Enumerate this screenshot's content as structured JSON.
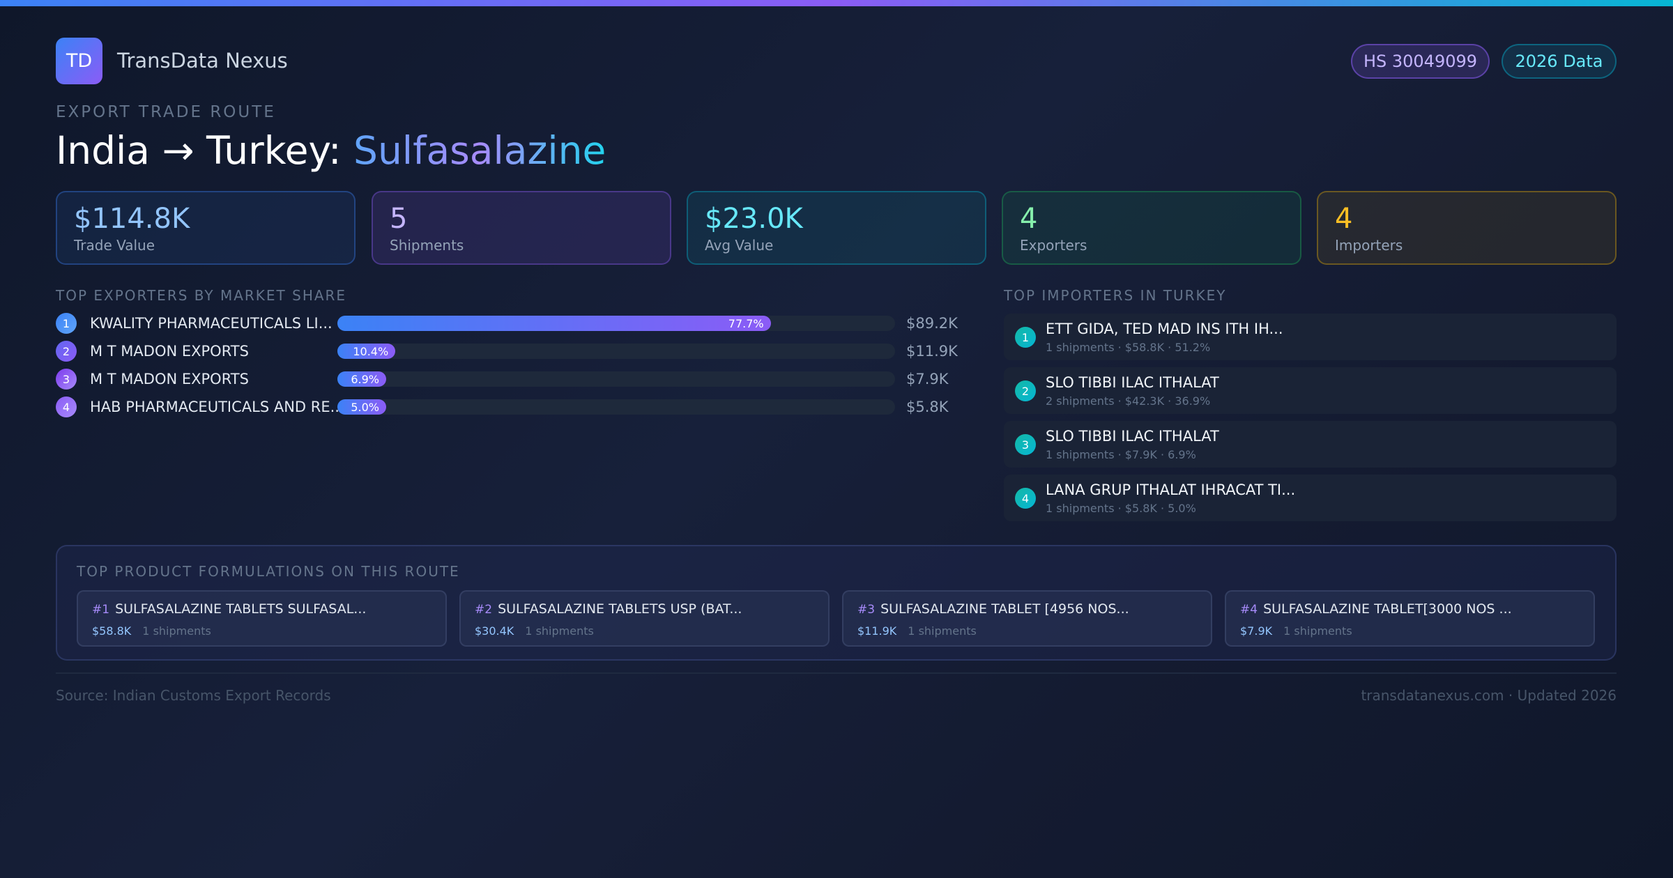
{
  "header": {
    "logo_text": "TD",
    "brand": "TransData Nexus",
    "badges": [
      "HS 30049099",
      "2026 Data"
    ]
  },
  "route": {
    "eyebrow": "EXPORT TRADE ROUTE",
    "title_prefix": "India → Turkey: ",
    "title_product": "Sulfasalazine"
  },
  "stats": [
    {
      "value": "$114.8K",
      "label": "Trade Value",
      "color": "#93c5fd"
    },
    {
      "value": "5",
      "label": "Shipments",
      "color": "#c4b5fd"
    },
    {
      "value": "$23.0K",
      "label": "Avg Value",
      "color": "#67e8f9"
    },
    {
      "value": "4",
      "label": "Exporters",
      "color": "#86efac"
    },
    {
      "value": "4",
      "label": "Importers",
      "color": "#fbbf24"
    }
  ],
  "exporters": {
    "label": "TOP EXPORTERS BY MARKET SHARE",
    "items": [
      {
        "rank": "1",
        "name": "KWALITY PHARMACEUTICALS LI...",
        "share": 77.7,
        "share_label": "77.7%",
        "value": "$89.2K"
      },
      {
        "rank": "2",
        "name": "M T MADON EXPORTS",
        "share": 10.4,
        "share_label": "10.4%",
        "value": "$11.9K"
      },
      {
        "rank": "3",
        "name": "M T MADON EXPORTS",
        "share": 6.9,
        "share_label": "6.9%",
        "value": "$7.9K"
      },
      {
        "rank": "4",
        "name": "HAB PHARMACEUTICALS AND RE...",
        "share": 5.0,
        "share_label": "5.0%",
        "value": "$5.8K"
      }
    ]
  },
  "importers": {
    "label": "TOP IMPORTERS IN TURKEY",
    "items": [
      {
        "rank": "1",
        "name": "ETT GIDA, TED MAD INS ITH IH...",
        "detail": "1 shipments · $58.8K · 51.2%"
      },
      {
        "rank": "2",
        "name": "SLO TIBBI ILAC ITHALAT",
        "detail": "2 shipments · $42.3K · 36.9%"
      },
      {
        "rank": "3",
        "name": "SLO TIBBI ILAC ITHALAT",
        "detail": "1 shipments · $7.9K · 6.9%"
      },
      {
        "rank": "4",
        "name": "LANA GRUP ITHALAT IHRACAT TI...",
        "detail": "1 shipments · $5.8K · 5.0%"
      }
    ]
  },
  "formulations": {
    "label": "TOP PRODUCT FORMULATIONS ON THIS ROUTE",
    "items": [
      {
        "rank": "#1",
        "name": "SULFASALAZINE TABLETS SULFASAL...",
        "value": "$58.8K",
        "shipments": "1 shipments"
      },
      {
        "rank": "#2",
        "name": "SULFASALAZINE TABLETS USP (BAT...",
        "value": "$30.4K",
        "shipments": "1 shipments"
      },
      {
        "rank": "#3",
        "name": "SULFASALAZINE TABLET [4956 NOS...",
        "value": "$11.9K",
        "shipments": "1 shipments"
      },
      {
        "rank": "#4",
        "name": "SULFASALAZINE TABLET[3000 NOS ...",
        "value": "$7.9K",
        "shipments": "1 shipments"
      }
    ]
  },
  "footer": {
    "source": "Source: Indian Customs Export Records",
    "site": "transdatanexus.com · Updated 2026"
  }
}
